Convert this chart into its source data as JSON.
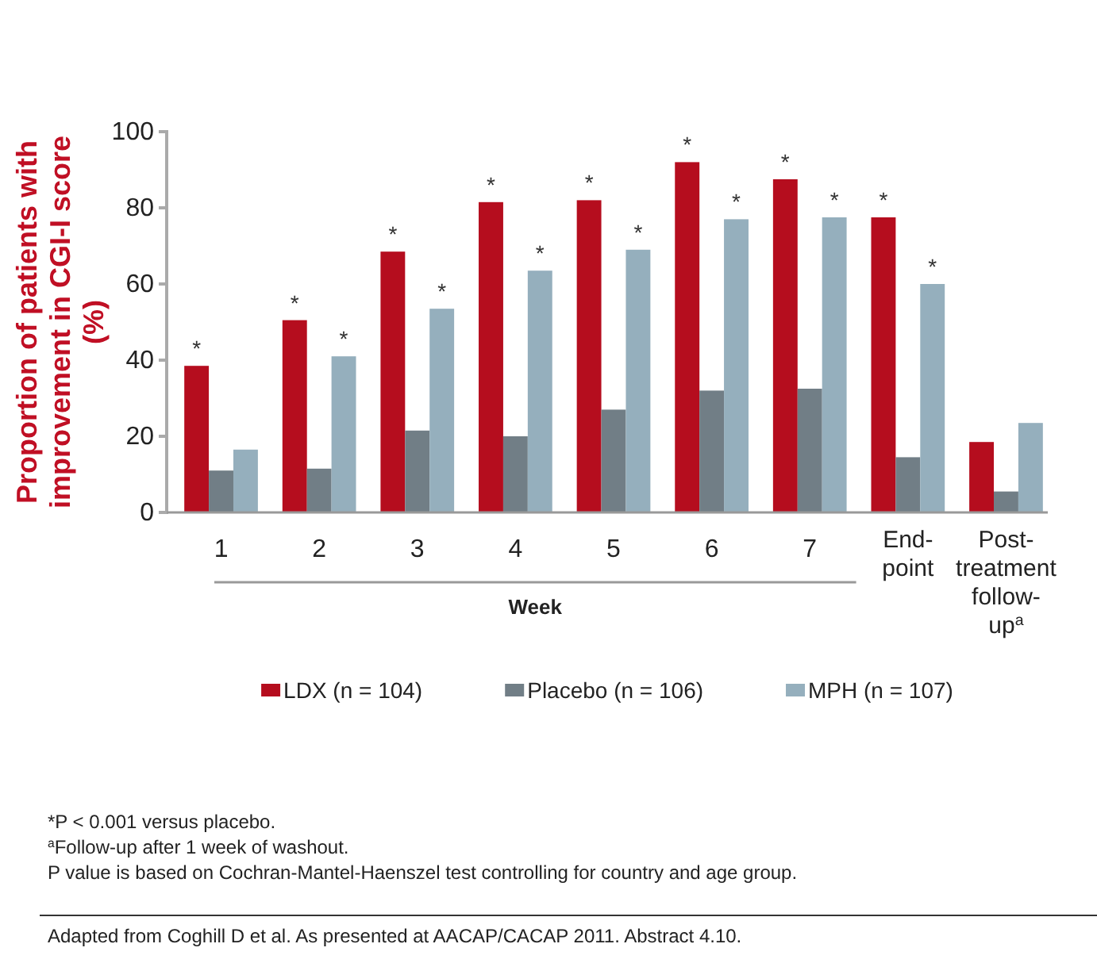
{
  "chart_data": {
    "type": "bar",
    "xlabel": "Week",
    "ylabel": "Proportion of patients with improvement in CGI-I score (%)",
    "categories": [
      "1",
      "2",
      "3",
      "4",
      "5",
      "6",
      "7",
      "End-point",
      "Post-treatment follow-up$^{a}$"
    ],
    "series": [
      {
        "name": "LDX (n = 104)",
        "color": "#b50d1e",
        "values": [
          38.5,
          50.5,
          68.5,
          81.5,
          82,
          92,
          87.5,
          77.5,
          18.5
        ],
        "value_labels": [
          "*",
          "*",
          "*",
          "*",
          "*",
          "*",
          "*",
          "*",
          null
        ]
      },
      {
        "name": "Placebo (n = 106)",
        "color": "#717e86",
        "values": [
          11,
          11.5,
          21.5,
          20,
          27,
          32,
          32.5,
          14.5,
          5.5
        ]
      },
      {
        "name": "MPH (n = 107)",
        "color": "#95afbd",
        "values": [
          16.5,
          41,
          53.5,
          63.5,
          69,
          77,
          77.5,
          60,
          23.5
        ],
        "value_labels": [
          null,
          "*",
          "*",
          "*",
          "*",
          "*",
          "*",
          "*",
          null
        ]
      }
    ],
    "ylim": [
      0,
      100
    ],
    "yticks": [
      0,
      20,
      40,
      60,
      80,
      100
    ],
    "grid": false,
    "legend": "bottom",
    "annotations": [
      "*P < 0.001 versus placebo.",
      "$^{a}$Follow-up after 1 week of washout.",
      "P value is based on Cochran-Mantel-Haenszel test controlling for country and age group.",
      "Adapted from Coghill D et al. As presented at AACAP/CACAP 2011. Abstract 4.10."
    ]
  }
}
